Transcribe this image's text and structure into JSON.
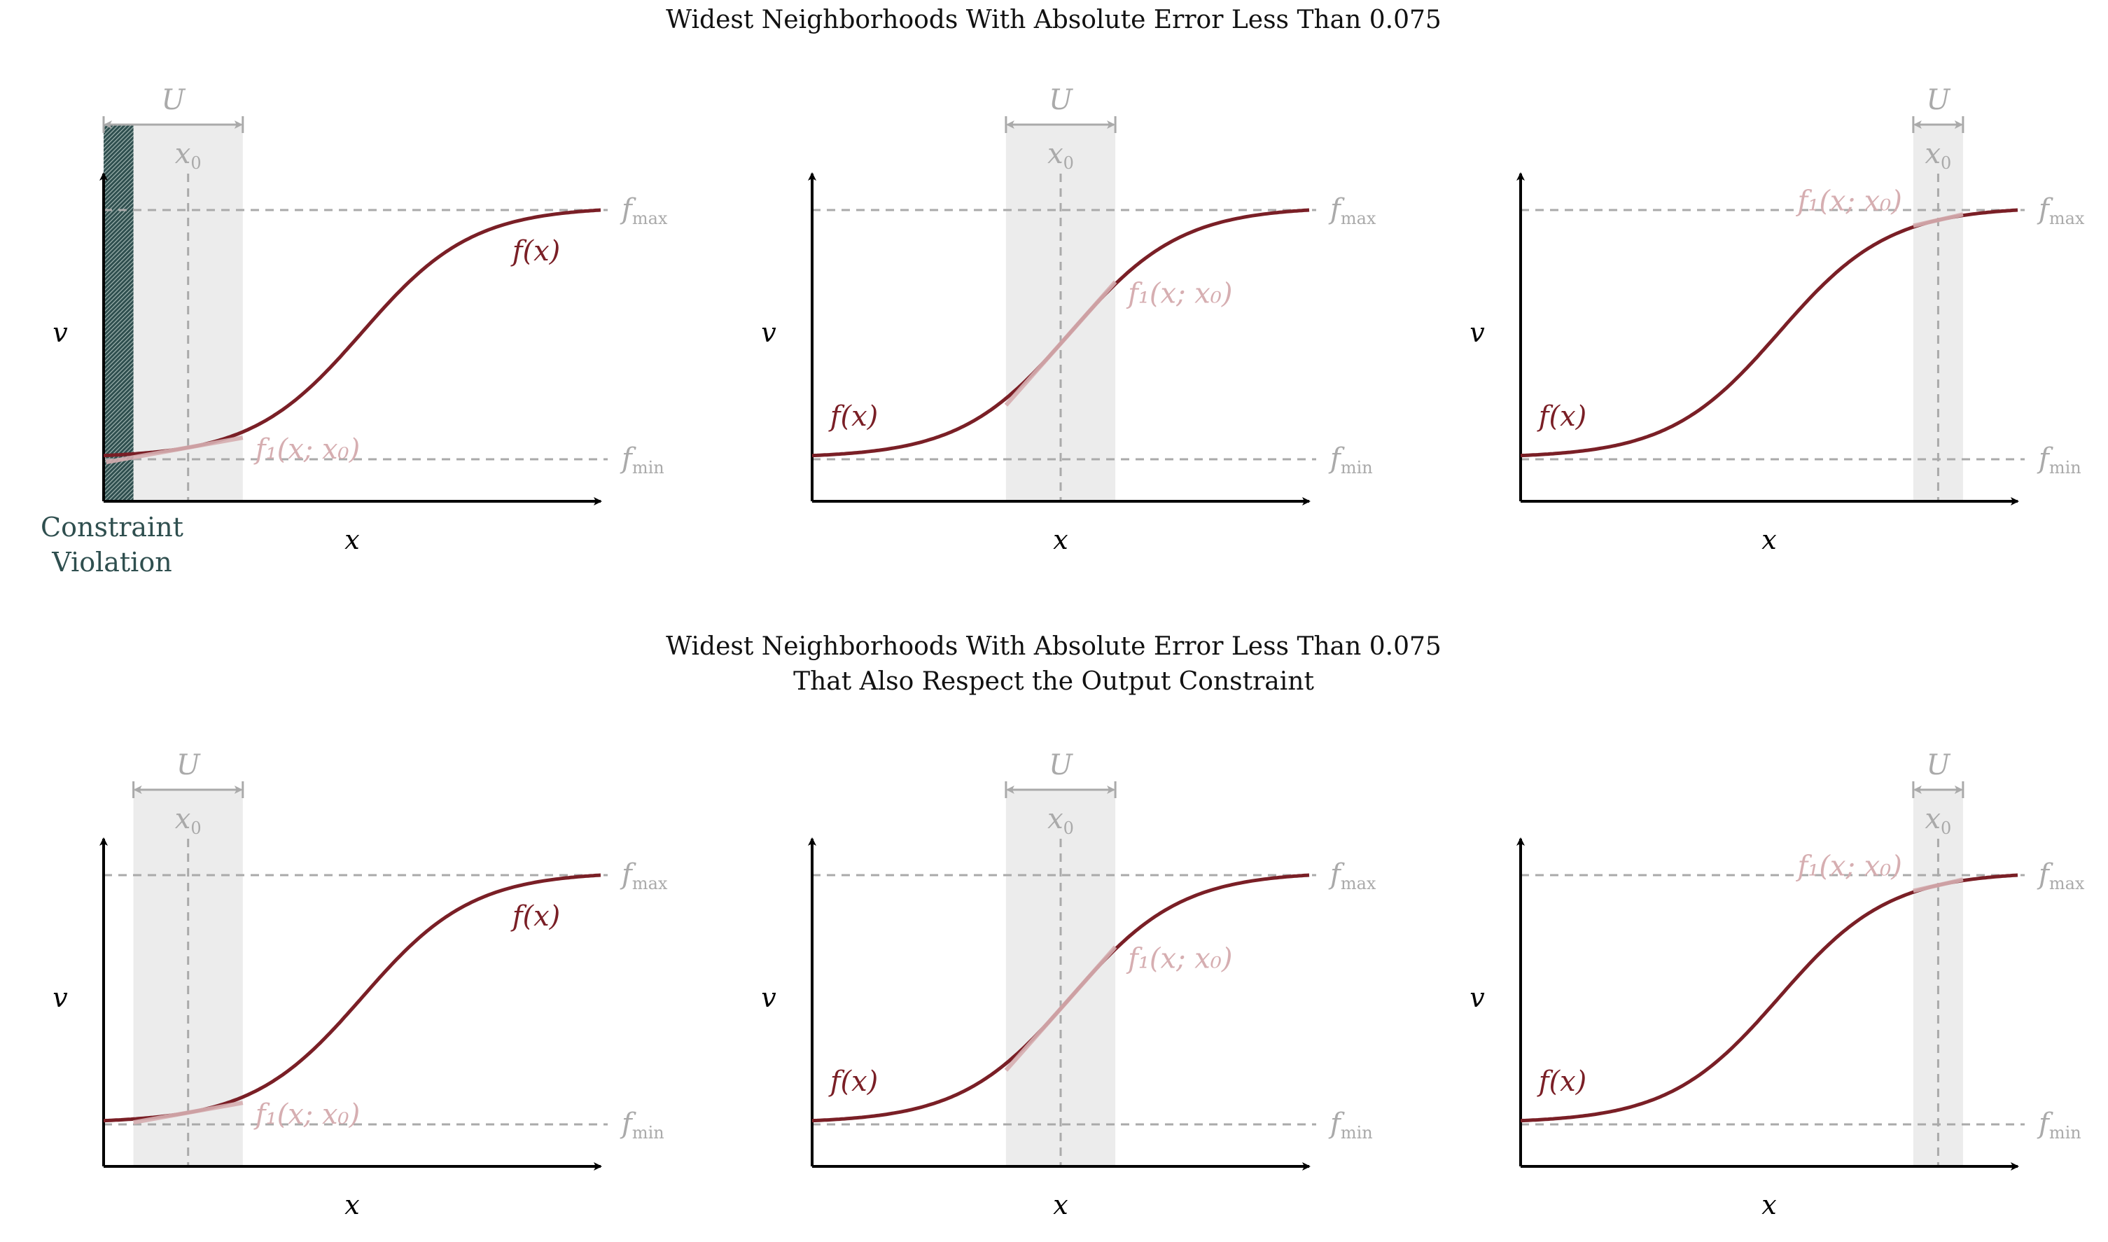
{
  "titles": {
    "top": "Widest Neighborhoods With Absolute Error Less Than 0.075",
    "bottom_line1": "Widest Neighborhoods With Absolute Error Less Than 0.075",
    "bottom_line2": "That Also Respect the Output Constraint"
  },
  "labels": {
    "x_axis": "x",
    "y_axis": "v",
    "f": "f(x)",
    "f1": "f₁(x; x₀)",
    "f_max": "f",
    "f_max_sub": "max",
    "f_min": "f",
    "f_min_sub": "min",
    "U": "U",
    "x0": "x",
    "x0_sub": "0",
    "constraint_line1": "Constraint",
    "constraint_line2": "Violation"
  },
  "colors": {
    "curve": "#7a1f26",
    "tangent": "#d6aeb1",
    "guide": "#aaaaaa",
    "band": "#ececec",
    "violation": "#2f4f4f"
  },
  "panels": [
    {
      "id": "top-left",
      "x0": 0.17,
      "U": [
        0.0,
        0.28
      ],
      "violation": [
        0.0,
        0.06
      ],
      "f_label_pos": "upper-right",
      "f1_label_pos": "right"
    },
    {
      "id": "top-middle",
      "x0": 0.5,
      "U": [
        0.39,
        0.61
      ],
      "violation": null,
      "f_label_pos": "lower-left",
      "f1_label_pos": "right"
    },
    {
      "id": "top-right",
      "x0": 0.84,
      "U": [
        0.79,
        0.89
      ],
      "violation": null,
      "f_label_pos": "lower-left",
      "f1_label_pos": "left"
    },
    {
      "id": "bottom-left",
      "x0": 0.17,
      "U": [
        0.06,
        0.28
      ],
      "violation": null,
      "f_label_pos": "upper-right",
      "f1_label_pos": "right"
    },
    {
      "id": "bottom-middle",
      "x0": 0.5,
      "U": [
        0.39,
        0.61
      ],
      "violation": null,
      "f_label_pos": "lower-left",
      "f1_label_pos": "right"
    },
    {
      "id": "bottom-right",
      "x0": 0.84,
      "U": [
        0.79,
        0.89
      ],
      "violation": null,
      "f_label_pos": "lower-left",
      "f1_label_pos": "left"
    }
  ]
}
